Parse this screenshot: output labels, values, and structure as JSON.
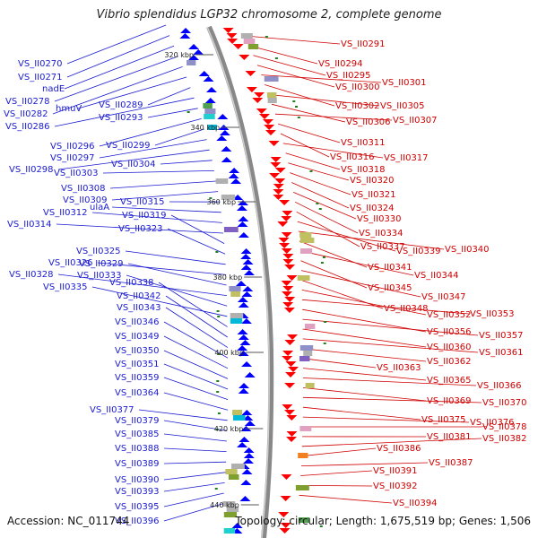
{
  "title": "Vibrio splendidus LGP32 chromosome 2, complete genome",
  "accession_label": "Accession: NC_011744",
  "summary_label": "Topology: circular; Length: 1,675,519 bp; Genes: 1,506",
  "scale_marks": [
    {
      "label": "320 kbp"
    },
    {
      "label": "340 kbp"
    },
    {
      "label": "360 kbp"
    },
    {
      "label": "380 kbp"
    },
    {
      "label": "400 kbp"
    },
    {
      "label": "420 kbp"
    },
    {
      "label": "440 kbp"
    }
  ],
  "colors": {
    "forward_strand": "#ff0000",
    "reverse_strand": "#0000ff",
    "backbone": "#888888",
    "left_labels": "#1a1ad0",
    "right_labels": "#d00000"
  },
  "left_genes": [
    "VS_II0270",
    "VS_II0271",
    "nadE",
    "VS_II0278",
    "VS_II0282",
    "hmuV",
    "VS_II0289",
    "VS_II0286",
    "VS_II0293",
    "VS_II0296",
    "VS_II0299",
    "VS_II0297",
    "VS_II0298",
    "VS_II0304",
    "VS_II0303",
    "VS_II0308",
    "VS_II0309",
    "VS_II0315",
    "ulaA",
    "VS_II0312",
    "VS_II0314",
    "VS_II0319",
    "VS_II0323",
    "VS_II0325",
    "VS_II0326",
    "VS_II0329",
    "VS_II0328",
    "VS_II0333",
    "VS_II0335",
    "VS_II0338",
    "VS_II0342",
    "VS_II0343",
    "VS_II0346",
    "VS_II0349",
    "VS_II0350",
    "VS_II0351",
    "VS_II0359",
    "VS_II0364",
    "VS_II0377",
    "VS_II0379",
    "VS_II0385",
    "VS_II0388",
    "VS_II0389",
    "VS_II0390",
    "VS_II0393",
    "VS_II0395",
    "VS_II0396"
  ],
  "right_genes": [
    "VS_II0291",
    "VS_II0294",
    "VS_II0295",
    "VS_II0300",
    "VS_II0301",
    "VS_II0302",
    "VS_II0305",
    "VS_II0306",
    "VS_II0307",
    "VS_II0311",
    "VS_II0316",
    "VS_II0317",
    "VS_II0318",
    "VS_II0320",
    "VS_II0321",
    "VS_II0324",
    "VS_II0330",
    "VS_II0334",
    "VS_II0337",
    "VS_II0339",
    "VS_II0340",
    "VS_II0341",
    "VS_II0344",
    "VS_II0345",
    "VS_II0347",
    "VS_II0348",
    "VS_II0352",
    "VS_II0353",
    "VS_II0356",
    "VS_II0357",
    "VS_II0360",
    "VS_II0361",
    "VS_II0362",
    "VS_II0363",
    "VS_II0365",
    "VS_II0366",
    "VS_II0369",
    "VS_II0370",
    "VS_II0375",
    "VS_II0376",
    "VS_II0378",
    "VS_II0381",
    "VS_II0382",
    "VS_II0386",
    "VS_II0387",
    "VS_II0391",
    "VS_II0392",
    "VS_II0394"
  ]
}
